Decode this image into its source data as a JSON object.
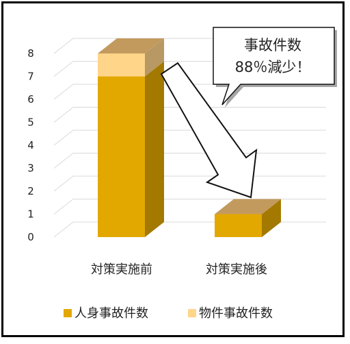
{
  "chart_data": {
    "type": "bar",
    "stacked": true,
    "three_d": true,
    "categories": [
      "対策実施前",
      "対策実施後"
    ],
    "series": [
      {
        "name": "人身事故件数",
        "values": [
          7,
          1
        ],
        "color": "#E3A800"
      },
      {
        "name": "物件事故件数",
        "values": [
          1,
          0
        ],
        "color": "#FFD58A"
      }
    ],
    "y_ticks": [
      0,
      1,
      2,
      3,
      4,
      5,
      6,
      7,
      8
    ],
    "ylim": [
      0,
      8
    ],
    "grid": true,
    "legend_position": "bottom",
    "annotation": {
      "line1": "事故件数",
      "line2": "88％減少！"
    }
  }
}
